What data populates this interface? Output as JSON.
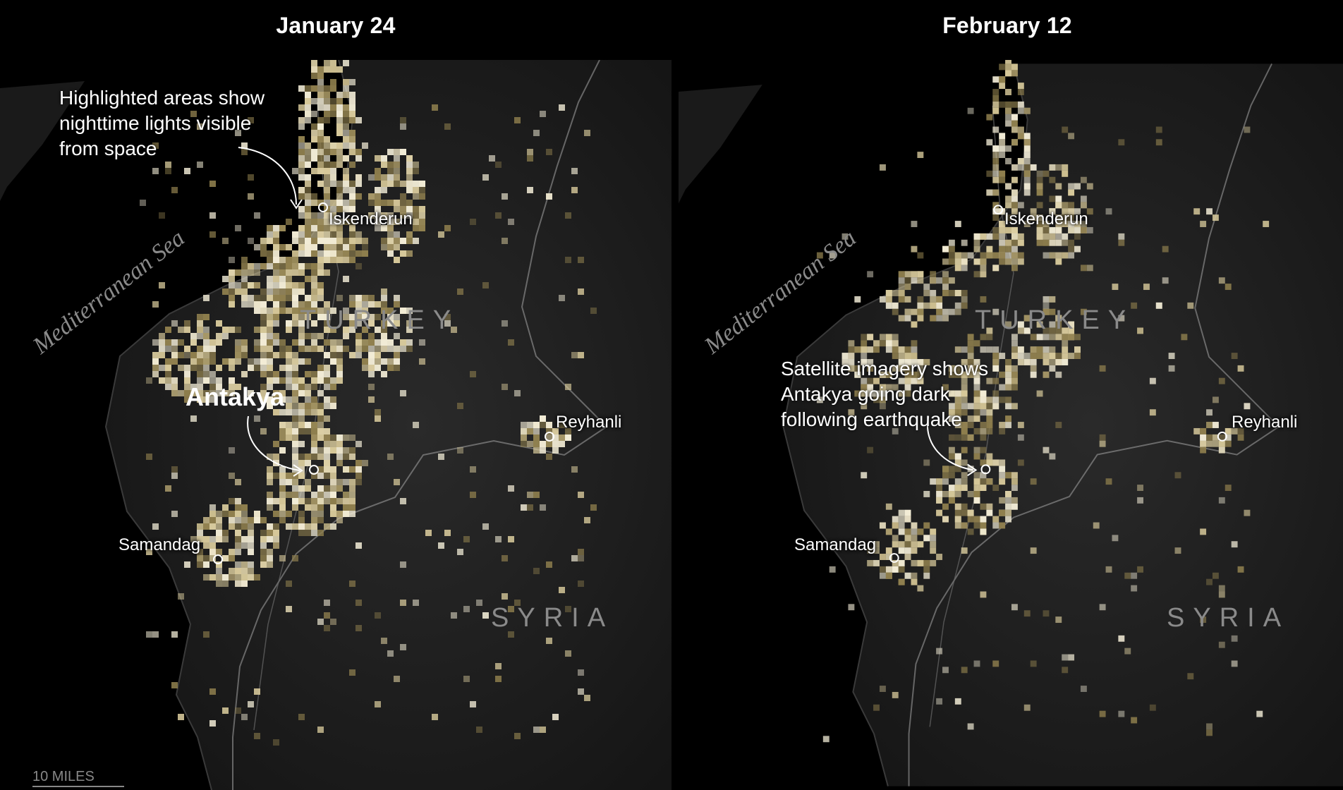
{
  "panels": [
    {
      "title": "January 24"
    },
    {
      "title": "February 12"
    }
  ],
  "labels": {
    "sea": "Mediterranean Sea",
    "turkey": "TURKEY",
    "syria": "SYRIA",
    "iskenderun": "Iskenderun",
    "reyhanli": "Reyhanli",
    "samandag": "Samandag",
    "antakya": "Antakya"
  },
  "annotations": {
    "lights_note": "Highlighted areas show nighttime lights visible from space",
    "dark_note": "Satellite imagery shows Antakya going dark following earthquake"
  },
  "scale_label": "10 MILES",
  "colors": {
    "background": "#000000",
    "land": "#1c1c1c",
    "light_bright": "#f2ecd6",
    "light_mid": "#d6c89a",
    "light_dim": "#8f7f4e",
    "border": "#9a9a9a"
  }
}
